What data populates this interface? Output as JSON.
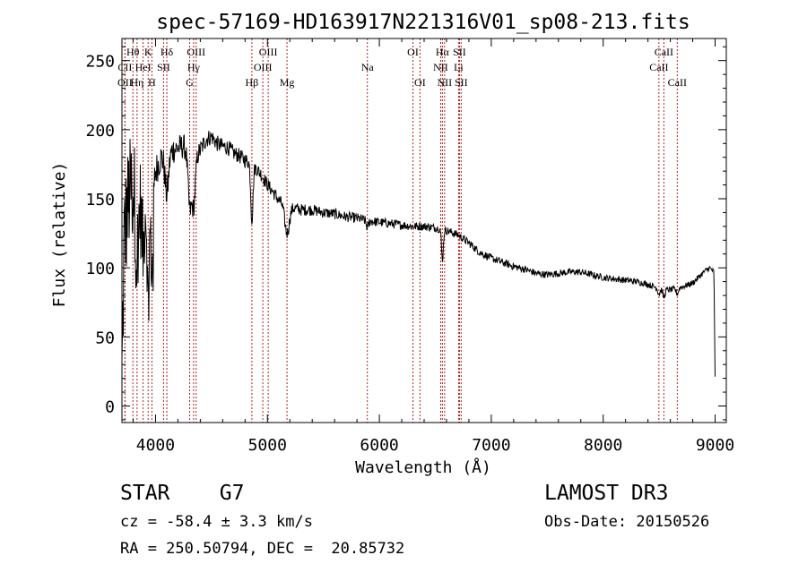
{
  "colors": {
    "spectrum": "#000000",
    "line_marker": "#b22222",
    "axis": "#000000"
  },
  "chart_data": {
    "type": "line",
    "title": "spec-57169-HD163917N221316V01_sp08-213.fits",
    "xlabel": "Wavelength (Å)",
    "ylabel": "Flux (relative)",
    "xlim": [
      3700,
      9100
    ],
    "ylim": [
      -12,
      266
    ],
    "x_ticks": [
      4000,
      5000,
      6000,
      7000,
      8000,
      9000
    ],
    "y_ticks": [
      0,
      50,
      100,
      150,
      200,
      250
    ],
    "grid": false,
    "series": [
      {
        "name": "spectrum",
        "continuum": [
          [
            3700,
            20
          ],
          [
            3720,
            120
          ],
          [
            3760,
            150
          ],
          [
            3800,
            160
          ],
          [
            3850,
            150
          ],
          [
            3900,
            155
          ],
          [
            3950,
            160
          ],
          [
            4000,
            170
          ],
          [
            4050,
            180
          ],
          [
            4100,
            178
          ],
          [
            4150,
            185
          ],
          [
            4200,
            187
          ],
          [
            4250,
            188
          ],
          [
            4300,
            185
          ],
          [
            4350,
            180
          ],
          [
            4400,
            185
          ],
          [
            4450,
            193
          ],
          [
            4500,
            195
          ],
          [
            4550,
            190
          ],
          [
            4600,
            188
          ],
          [
            4650,
            187
          ],
          [
            4700,
            183
          ],
          [
            4750,
            181
          ],
          [
            4800,
            178
          ],
          [
            4850,
            176
          ],
          [
            4900,
            172
          ],
          [
            4950,
            167
          ],
          [
            5000,
            160
          ],
          [
            5050,
            155
          ],
          [
            5100,
            149
          ],
          [
            5150,
            146
          ],
          [
            5200,
            144
          ],
          [
            5300,
            142
          ],
          [
            5400,
            142
          ],
          [
            5500,
            140
          ],
          [
            5600,
            139
          ],
          [
            5700,
            137
          ],
          [
            5800,
            136
          ],
          [
            5900,
            134
          ],
          [
            6000,
            133
          ],
          [
            6100,
            132
          ],
          [
            6200,
            131
          ],
          [
            6300,
            130
          ],
          [
            6400,
            130
          ],
          [
            6500,
            129
          ],
          [
            6600,
            127
          ],
          [
            6700,
            124
          ],
          [
            6800,
            118
          ],
          [
            6900,
            111
          ],
          [
            7000,
            107
          ],
          [
            7100,
            104
          ],
          [
            7200,
            101
          ],
          [
            7300,
            99
          ],
          [
            7400,
            96
          ],
          [
            7500,
            95
          ],
          [
            7600,
            96
          ],
          [
            7700,
            97
          ],
          [
            7800,
            97
          ],
          [
            7900,
            95
          ],
          [
            8000,
            93
          ],
          [
            8100,
            92
          ],
          [
            8200,
            91
          ],
          [
            8300,
            90
          ],
          [
            8400,
            88
          ],
          [
            8500,
            85
          ],
          [
            8600,
            84
          ],
          [
            8700,
            86
          ],
          [
            8800,
            89
          ],
          [
            8850,
            93
          ],
          [
            8900,
            97
          ],
          [
            8950,
            100
          ],
          [
            8990,
            97
          ],
          [
            9000,
            20
          ]
        ],
        "absorption": [
          [
            3835,
            45,
            12
          ],
          [
            3889,
            40,
            12
          ],
          [
            3934,
            80,
            10
          ],
          [
            3968,
            70,
            10
          ],
          [
            4101,
            25,
            15
          ],
          [
            4305,
            40,
            15
          ],
          [
            4340,
            35,
            15
          ],
          [
            4861,
            40,
            10
          ],
          [
            5175,
            20,
            20
          ],
          [
            5893,
            5,
            10
          ],
          [
            6563,
            22,
            8
          ],
          [
            8498,
            4,
            10
          ],
          [
            8542,
            6,
            10
          ],
          [
            8662,
            4,
            10
          ]
        ],
        "noise": [
          [
            3700,
            45
          ],
          [
            3850,
            40
          ],
          [
            4000,
            12
          ],
          [
            4500,
            6
          ],
          [
            5500,
            4
          ],
          [
            6500,
            3
          ],
          [
            9000,
            2
          ]
        ]
      }
    ],
    "lines": [
      {
        "label": "CII",
        "wavelength": 3727,
        "row": 1
      },
      {
        "label": "OII",
        "wavelength": 3727,
        "row": 2
      },
      {
        "label": "Hθ",
        "wavelength": 3798,
        "row": 0
      },
      {
        "label": "Hη",
        "wavelength": 3835,
        "row": 2
      },
      {
        "label": "HeI",
        "wavelength": 3889,
        "row": 1
      },
      {
        "label": "K",
        "wavelength": 3934,
        "row": 0
      },
      {
        "label": "H",
        "wavelength": 3968,
        "row": 2
      },
      {
        "label": "SII",
        "wavelength": 4072,
        "row": 1
      },
      {
        "label": "Hδ",
        "wavelength": 4101,
        "row": 0
      },
      {
        "label": "G",
        "wavelength": 4305,
        "row": 2
      },
      {
        "label": "Hγ",
        "wavelength": 4340,
        "row": 1
      },
      {
        "label": "OIII",
        "wavelength": 4363,
        "row": 0
      },
      {
        "label": "Hβ",
        "wavelength": 4861,
        "row": 2
      },
      {
        "label": "OIII",
        "wavelength": 4959,
        "row": 1
      },
      {
        "label": "OIII",
        "wavelength": 5007,
        "row": 0
      },
      {
        "label": "Mg",
        "wavelength": 5175,
        "row": 2
      },
      {
        "label": "Na",
        "wavelength": 5893,
        "row": 1
      },
      {
        "label": "OI",
        "wavelength": 6300,
        "row": 0
      },
      {
        "label": "OI",
        "wavelength": 6363,
        "row": 2
      },
      {
        "label": "NII",
        "wavelength": 6548,
        "row": 1
      },
      {
        "label": "Hα",
        "wavelength": 6563,
        "row": 0
      },
      {
        "label": "NII",
        "wavelength": 6583,
        "row": 2
      },
      {
        "label": "Li",
        "wavelength": 6708,
        "row": 1
      },
      {
        "label": "SII",
        "wavelength": 6716,
        "row": 0
      },
      {
        "label": "SII",
        "wavelength": 6731,
        "row": 2
      },
      {
        "label": "CaII",
        "wavelength": 8498,
        "row": 1
      },
      {
        "label": "CaII",
        "wavelength": 8542,
        "row": 0
      },
      {
        "label": "CaII",
        "wavelength": 8662,
        "row": 2
      }
    ]
  },
  "info": {
    "class_label": "STAR    G7",
    "survey": "LAMOST DR3",
    "cz": "cz = -58.4 ± 3.3 km/s",
    "obs_date": "Obs-Date: 20150526",
    "radec": "RA = 250.50794, DEC =  20.85732"
  }
}
